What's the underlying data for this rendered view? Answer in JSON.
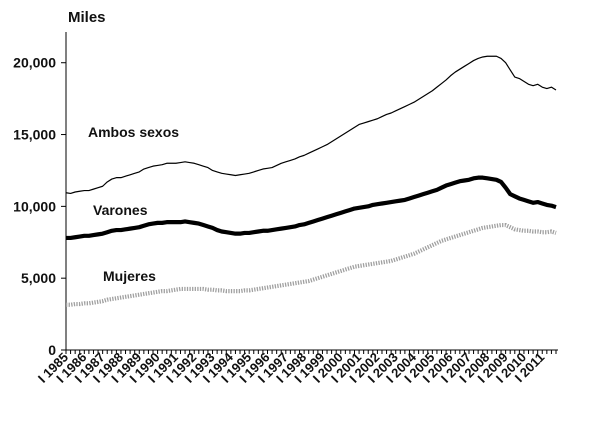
{
  "chart_data": {
    "type": "line",
    "unit_label": "Miles",
    "ylim": [
      0,
      22000
    ],
    "y_ticks": [
      0,
      5000,
      10000,
      15000,
      20000
    ],
    "y_tick_labels": [
      "0",
      "5,000",
      "10,000",
      "15,000",
      "20,000"
    ],
    "x_tick_labels": [
      "1985",
      "1986",
      "1987",
      "1988",
      "1989",
      "1990",
      "1991",
      "1992",
      "1993",
      "1994",
      "1995",
      "1996",
      "1997",
      "1998",
      "1999",
      "2000",
      "2001",
      "2002",
      "2003",
      "2004",
      "2005",
      "2006",
      "2007",
      "2008",
      "2009",
      "2010",
      "2011"
    ],
    "x_tick_prefix": "I",
    "grid": false,
    "legend": "inline labels",
    "x": [
      "1985-I",
      "1985-II",
      "1985-III",
      "1985-IV",
      "1986-I",
      "1986-II",
      "1986-III",
      "1986-IV",
      "1987-I",
      "1987-II",
      "1987-III",
      "1987-IV",
      "1988-I",
      "1988-II",
      "1988-III",
      "1988-IV",
      "1989-I",
      "1989-II",
      "1989-III",
      "1989-IV",
      "1990-I",
      "1990-II",
      "1990-III",
      "1990-IV",
      "1991-I",
      "1991-II",
      "1991-III",
      "1991-IV",
      "1992-I",
      "1992-II",
      "1992-III",
      "1992-IV",
      "1993-I",
      "1993-II",
      "1993-III",
      "1993-IV",
      "1994-I",
      "1994-II",
      "1994-III",
      "1994-IV",
      "1995-I",
      "1995-II",
      "1995-III",
      "1995-IV",
      "1996-I",
      "1996-II",
      "1996-III",
      "1996-IV",
      "1997-I",
      "1997-II",
      "1997-III",
      "1997-IV",
      "1998-I",
      "1998-II",
      "1998-III",
      "1998-IV",
      "1999-I",
      "1999-II",
      "1999-III",
      "1999-IV",
      "2000-I",
      "2000-II",
      "2000-III",
      "2000-IV",
      "2001-I",
      "2001-II",
      "2001-III",
      "2001-IV",
      "2002-I",
      "2002-II",
      "2002-III",
      "2002-IV",
      "2003-I",
      "2003-II",
      "2003-III",
      "2003-IV",
      "2004-I",
      "2004-II",
      "2004-III",
      "2004-IV",
      "2005-I",
      "2005-II",
      "2005-III",
      "2005-IV",
      "2006-I",
      "2006-II",
      "2006-III",
      "2006-IV",
      "2007-I",
      "2007-II",
      "2007-III",
      "2007-IV",
      "2008-I",
      "2008-II",
      "2008-III",
      "2008-IV",
      "2009-I",
      "2009-II",
      "2009-III",
      "2009-IV",
      "2010-I",
      "2010-II",
      "2010-III",
      "2010-IV",
      "2011-I",
      "2011-II",
      "2011-III",
      "2011-IV"
    ],
    "series": [
      {
        "name": "Ambos sexos",
        "color": "#000000",
        "style": "thin",
        "values": [
          10950,
          10900,
          11000,
          11050,
          11100,
          11100,
          11200,
          11300,
          11400,
          11700,
          11900,
          12000,
          12000,
          12100,
          12200,
          12300,
          12400,
          12600,
          12700,
          12800,
          12850,
          12900,
          13000,
          13000,
          13000,
          13050,
          13100,
          13050,
          13000,
          12900,
          12800,
          12700,
          12500,
          12400,
          12300,
          12250,
          12200,
          12150,
          12200,
          12250,
          12300,
          12400,
          12500,
          12600,
          12650,
          12700,
          12850,
          13000,
          13100,
          13200,
          13300,
          13450,
          13550,
          13700,
          13850,
          14000,
          14150,
          14300,
          14500,
          14700,
          14900,
          15100,
          15300,
          15500,
          15700,
          15800,
          15900,
          16000,
          16100,
          16250,
          16400,
          16500,
          16650,
          16800,
          16950,
          17100,
          17250,
          17450,
          17650,
          17850,
          18050,
          18300,
          18550,
          18800,
          19100,
          19350,
          19550,
          19750,
          19950,
          20150,
          20300,
          20400,
          20450,
          20450,
          20450,
          20300,
          20000,
          19500,
          19000,
          18900,
          18700,
          18500,
          18400,
          18500,
          18300,
          18200,
          18300,
          18100
        ]
      },
      {
        "name": "Varones",
        "color": "#000000",
        "style": "thick",
        "values": [
          7800,
          7800,
          7850,
          7900,
          7950,
          7950,
          8000,
          8050,
          8100,
          8200,
          8300,
          8350,
          8350,
          8400,
          8450,
          8500,
          8550,
          8650,
          8750,
          8800,
          8850,
          8850,
          8900,
          8900,
          8900,
          8900,
          8950,
          8900,
          8850,
          8800,
          8700,
          8600,
          8500,
          8350,
          8250,
          8200,
          8150,
          8100,
          8100,
          8150,
          8150,
          8200,
          8250,
          8300,
          8300,
          8350,
          8400,
          8450,
          8500,
          8550,
          8600,
          8700,
          8750,
          8850,
          8950,
          9050,
          9150,
          9250,
          9350,
          9450,
          9550,
          9650,
          9750,
          9850,
          9900,
          9950,
          10000,
          10100,
          10150,
          10200,
          10250,
          10300,
          10350,
          10400,
          10450,
          10550,
          10650,
          10750,
          10850,
          10950,
          11050,
          11150,
          11300,
          11450,
          11550,
          11650,
          11750,
          11800,
          11850,
          11950,
          12000,
          12000,
          11950,
          11900,
          11850,
          11700,
          11300,
          10850,
          10700,
          10550,
          10450,
          10350,
          10250,
          10300,
          10200,
          10100,
          10050,
          9950
        ]
      },
      {
        "name": "Mujeres",
        "color": "#a0a0a0",
        "style": "dotted",
        "values": [
          3150,
          3150,
          3200,
          3200,
          3250,
          3250,
          3300,
          3350,
          3400,
          3500,
          3550,
          3600,
          3650,
          3700,
          3750,
          3800,
          3850,
          3900,
          3950,
          4000,
          4050,
          4100,
          4100,
          4150,
          4200,
          4250,
          4250,
          4250,
          4250,
          4250,
          4250,
          4200,
          4200,
          4150,
          4150,
          4100,
          4100,
          4100,
          4100,
          4150,
          4150,
          4200,
          4250,
          4300,
          4350,
          4400,
          4450,
          4500,
          4550,
          4600,
          4650,
          4700,
          4750,
          4800,
          4900,
          5000,
          5100,
          5200,
          5300,
          5400,
          5500,
          5600,
          5700,
          5800,
          5850,
          5900,
          5950,
          6000,
          6050,
          6100,
          6150,
          6200,
          6300,
          6400,
          6500,
          6600,
          6700,
          6850,
          7000,
          7150,
          7300,
          7450,
          7600,
          7700,
          7800,
          7900,
          8000,
          8100,
          8200,
          8300,
          8400,
          8500,
          8550,
          8600,
          8650,
          8700,
          8700,
          8550,
          8400,
          8350,
          8300,
          8300,
          8250,
          8250,
          8200,
          8200,
          8250,
          8150
        ]
      }
    ]
  }
}
